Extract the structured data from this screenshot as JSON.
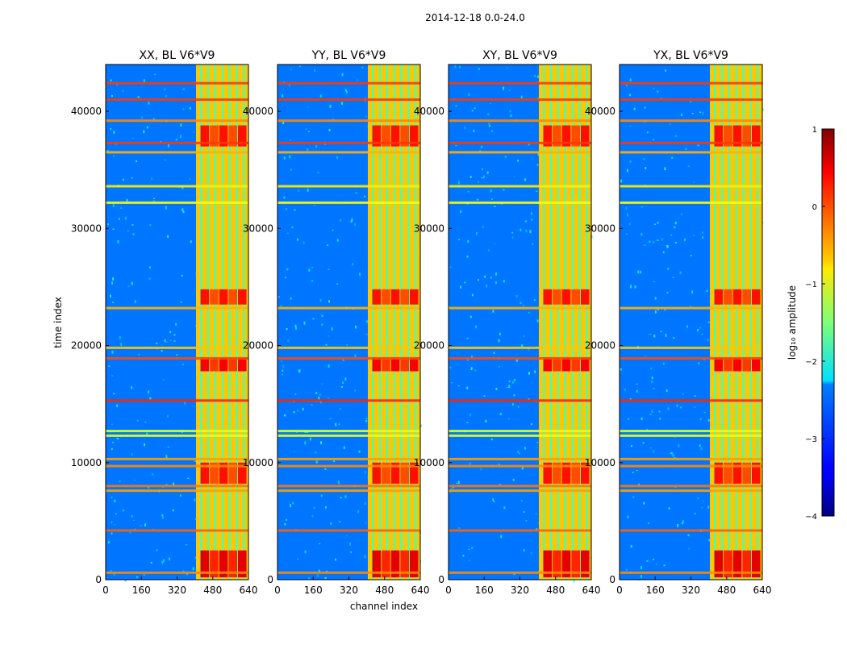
{
  "figure": {
    "suptitle": "2014-12-18 0.0-24.0"
  },
  "chart_data": {
    "type": "heatmap",
    "panels": [
      {
        "title": "XX, BL V6*V9"
      },
      {
        "title": "YY, BL V6*V9"
      },
      {
        "title": "XY, BL V6*V9"
      },
      {
        "title": "YX, BL V6*V9"
      }
    ],
    "xlabel": "channel index",
    "ylabel": "time index",
    "xlim": [
      0,
      640
    ],
    "ylim": [
      0,
      44000
    ],
    "x_ticks": [
      0,
      160,
      320,
      480,
      640
    ],
    "y_ticks": [
      0,
      10000,
      20000,
      30000,
      40000
    ],
    "x_tick_labels": [
      "0",
      "160",
      "320",
      "480",
      "640"
    ],
    "y_tick_labels": [
      "0",
      "10000",
      "20000",
      "30000",
      "40000"
    ],
    "colorbar": {
      "label": "log₁₀ amplitude",
      "ticks": [
        1,
        0,
        -1,
        -2,
        -3,
        -4
      ],
      "tick_labels": [
        "1",
        "0",
        "−1",
        "−2",
        "−3",
        "−4"
      ],
      "range": [
        -4,
        1
      ],
      "colormap": "jet"
    },
    "regions": {
      "background_level": -2.8,
      "bright_band_channels": [
        405,
        640
      ],
      "bright_band_level": -0.6,
      "hot_segments": [
        {
          "t": [
            37000,
            38800
          ],
          "level": 0.3
        },
        {
          "t": [
            23500,
            24800
          ],
          "level": 0.3
        },
        {
          "t": [
            17800,
            19000
          ],
          "level": 0.4
        },
        {
          "t": [
            8200,
            10000
          ],
          "level": 0.3
        },
        {
          "t": [
            200,
            2500
          ],
          "level": 0.5
        }
      ],
      "rfi_rows": [
        {
          "t": 42400,
          "level": 0.1
        },
        {
          "t": 41000,
          "level": 0.1
        },
        {
          "t": 39200,
          "level": -0.3
        },
        {
          "t": 37300,
          "level": 0.1
        },
        {
          "t": 36500,
          "level": -0.5
        },
        {
          "t": 33600,
          "level": -0.8
        },
        {
          "t": 32200,
          "level": -0.9
        },
        {
          "t": 23200,
          "level": -0.5
        },
        {
          "t": 19800,
          "level": -0.6
        },
        {
          "t": 18900,
          "level": 0.0
        },
        {
          "t": 15300,
          "level": 0.2
        },
        {
          "t": 12700,
          "level": -1.0
        },
        {
          "t": 12300,
          "level": -1.0
        },
        {
          "t": 10300,
          "level": -0.4
        },
        {
          "t": 9700,
          "level": -0.3
        },
        {
          "t": 8000,
          "level": -0.2
        },
        {
          "t": 7600,
          "level": -0.4
        },
        {
          "t": 4200,
          "level": -0.1
        },
        {
          "t": 600,
          "level": -0.3
        }
      ]
    }
  }
}
